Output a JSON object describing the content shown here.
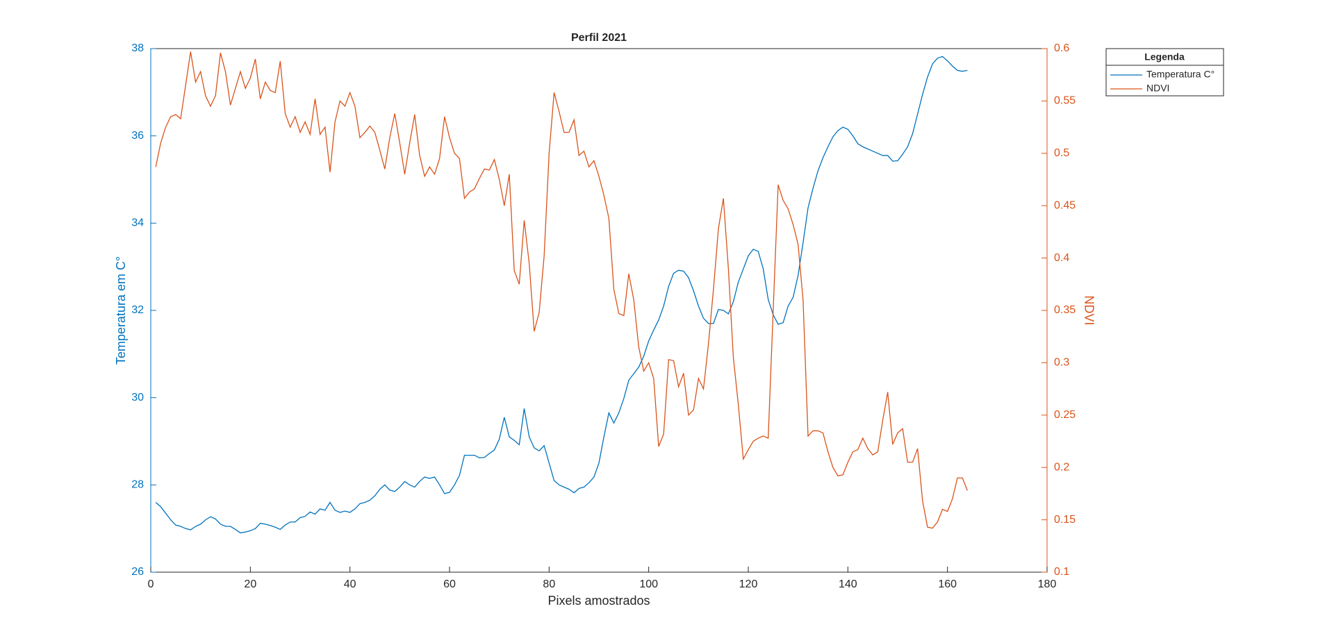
{
  "chart_data": {
    "type": "line",
    "title": "Perfil 2021",
    "x_label": "Pixels amostrados",
    "y_label": "Temperatura em C°",
    "y2_label": "NDVI",
    "legend_title": "Legenda",
    "legend_position": "outside-right",
    "x": [
      1,
      2,
      3,
      4,
      5,
      6,
      7,
      8,
      9,
      10,
      11,
      12,
      13,
      14,
      15,
      16,
      17,
      18,
      19,
      20,
      21,
      22,
      23,
      24,
      25,
      26,
      27,
      28,
      29,
      30,
      31,
      32,
      33,
      34,
      35,
      36,
      37,
      38,
      39,
      40,
      41,
      42,
      43,
      44,
      45,
      46,
      47,
      48,
      49,
      50,
      51,
      52,
      53,
      54,
      55,
      56,
      57,
      58,
      59,
      60,
      61,
      62,
      63,
      64,
      65,
      66,
      67,
      68,
      69,
      70,
      71,
      72,
      73,
      74,
      75,
      76,
      77,
      78,
      79,
      80,
      81,
      82,
      83,
      84,
      85,
      86,
      87,
      88,
      89,
      90,
      91,
      92,
      93,
      94,
      95,
      96,
      97,
      98,
      99,
      100,
      101,
      102,
      103,
      104,
      105,
      106,
      107,
      108,
      109,
      110,
      111,
      112,
      113,
      114,
      115,
      116,
      117,
      118,
      119,
      120,
      121,
      122,
      123,
      124,
      125,
      126,
      127,
      128,
      129,
      130,
      131,
      132,
      133,
      134,
      135,
      136,
      137,
      138,
      139,
      140,
      141,
      142,
      143,
      144,
      145,
      146,
      147,
      148,
      149,
      150,
      151,
      152,
      153,
      154,
      155,
      156,
      157,
      158,
      159,
      160,
      161,
      162,
      163,
      164
    ],
    "series": [
      {
        "name": "Temperatura C°",
        "color": "#0072BD",
        "axis": "y",
        "values": [
          27.6,
          27.5,
          27.35,
          27.2,
          27.08,
          27.05,
          27.0,
          26.97,
          27.05,
          27.1,
          27.2,
          27.27,
          27.22,
          27.1,
          27.05,
          27.05,
          26.98,
          26.9,
          26.92,
          26.95,
          27.0,
          27.12,
          27.1,
          27.07,
          27.03,
          26.98,
          27.08,
          27.15,
          27.15,
          27.25,
          27.28,
          27.38,
          27.33,
          27.45,
          27.42,
          27.6,
          27.42,
          27.37,
          27.4,
          27.37,
          27.45,
          27.57,
          27.6,
          27.65,
          27.75,
          27.9,
          28.0,
          27.88,
          27.85,
          27.95,
          28.08,
          28.0,
          27.95,
          28.08,
          28.18,
          28.15,
          28.18,
          28.0,
          27.8,
          27.83,
          28.0,
          28.22,
          28.68,
          28.68,
          28.68,
          28.62,
          28.63,
          28.72,
          28.8,
          29.05,
          29.55,
          29.1,
          29.02,
          28.92,
          29.75,
          29.1,
          28.85,
          28.78,
          28.9,
          28.5,
          28.1,
          28.0,
          27.95,
          27.9,
          27.82,
          27.92,
          27.95,
          28.05,
          28.18,
          28.5,
          29.1,
          29.65,
          29.42,
          29.65,
          29.98,
          30.4,
          30.55,
          30.7,
          30.95,
          31.3,
          31.55,
          31.78,
          32.1,
          32.55,
          32.85,
          32.92,
          32.9,
          32.75,
          32.45,
          32.1,
          31.82,
          31.7,
          31.7,
          32.02,
          32.0,
          31.92,
          32.2,
          32.65,
          32.95,
          33.25,
          33.4,
          33.35,
          32.95,
          32.25,
          31.9,
          31.68,
          31.72,
          32.1,
          32.3,
          32.8,
          33.55,
          34.35,
          34.8,
          35.2,
          35.5,
          35.75,
          35.98,
          36.12,
          36.2,
          36.15,
          36.0,
          35.82,
          35.75,
          35.7,
          35.65,
          35.6,
          35.55,
          35.55,
          35.42,
          35.43,
          35.58,
          35.75,
          36.05,
          36.5,
          36.95,
          37.35,
          37.65,
          37.78,
          37.82,
          37.72,
          37.6,
          37.5,
          37.48,
          37.5
        ]
      },
      {
        "name": "NDVI",
        "color": "#D95319",
        "axis": "y2",
        "values": [
          0.487,
          0.51,
          0.525,
          0.535,
          0.537,
          0.533,
          0.565,
          0.597,
          0.568,
          0.578,
          0.555,
          0.545,
          0.555,
          0.596,
          0.578,
          0.546,
          0.562,
          0.578,
          0.562,
          0.572,
          0.59,
          0.552,
          0.568,
          0.56,
          0.558,
          0.588,
          0.538,
          0.525,
          0.535,
          0.52,
          0.53,
          0.518,
          0.552,
          0.518,
          0.525,
          0.482,
          0.53,
          0.55,
          0.545,
          0.558,
          0.545,
          0.515,
          0.52,
          0.526,
          0.52,
          0.503,
          0.485,
          0.515,
          0.538,
          0.51,
          0.48,
          0.51,
          0.537,
          0.498,
          0.478,
          0.487,
          0.48,
          0.495,
          0.535,
          0.515,
          0.5,
          0.495,
          0.457,
          0.463,
          0.466,
          0.476,
          0.485,
          0.484,
          0.494,
          0.475,
          0.45,
          0.48,
          0.388,
          0.375,
          0.436,
          0.395,
          0.33,
          0.348,
          0.402,
          0.5,
          0.558,
          0.54,
          0.52,
          0.52,
          0.532,
          0.498,
          0.502,
          0.487,
          0.493,
          0.478,
          0.46,
          0.438,
          0.37,
          0.347,
          0.345,
          0.385,
          0.36,
          0.315,
          0.292,
          0.3,
          0.285,
          0.22,
          0.232,
          0.303,
          0.302,
          0.277,
          0.29,
          0.25,
          0.255,
          0.285,
          0.275,
          0.318,
          0.37,
          0.428,
          0.457,
          0.39,
          0.305,
          0.26,
          0.208,
          0.217,
          0.225,
          0.228,
          0.23,
          0.228,
          0.35,
          0.47,
          0.455,
          0.447,
          0.432,
          0.413,
          0.36,
          0.23,
          0.235,
          0.235,
          0.233,
          0.215,
          0.2,
          0.192,
          0.193,
          0.205,
          0.215,
          0.217,
          0.228,
          0.218,
          0.212,
          0.215,
          0.245,
          0.272,
          0.222,
          0.233,
          0.237,
          0.205,
          0.205,
          0.218,
          0.168,
          0.143,
          0.142,
          0.148,
          0.16,
          0.158,
          0.17,
          0.19,
          0.19,
          0.178
        ]
      }
    ],
    "xlim": [
      0,
      180
    ],
    "xticks": [
      0,
      20,
      40,
      60,
      80,
      100,
      120,
      140,
      160,
      180
    ],
    "ylim": [
      26,
      38
    ],
    "yticks": [
      26,
      28,
      30,
      32,
      34,
      36,
      38
    ],
    "y2lim": [
      0.1,
      0.6
    ],
    "y2ticks": [
      0.1,
      0.15,
      0.2,
      0.25,
      0.3,
      0.35,
      0.4,
      0.45,
      0.5,
      0.55,
      0.6
    ]
  }
}
